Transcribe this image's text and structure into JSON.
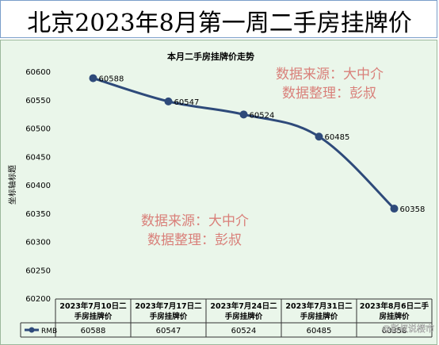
{
  "page": {
    "title": "北京2023年8月第一周二手房挂牌价"
  },
  "watermarks": [
    {
      "line1": "数据来源：大中介",
      "line2": "数据整理：彭叔"
    },
    {
      "line1": "数据来源：大中介",
      "line2": "数据整理：彭叔"
    }
  ],
  "footer_credit": "@彭叔说楼市",
  "colors": {
    "line": "#2e4a7a",
    "marker": "#2e4a7a",
    "background": "#eaf6ea",
    "watermark": "#d9807a"
  },
  "chart_data": {
    "type": "line",
    "title": "本月二手房挂牌价走势",
    "ylabel": "坐标轴标题",
    "xlabel": "",
    "ylim": [
      60200,
      60600
    ],
    "yticks": [
      60200,
      60250,
      60300,
      60350,
      60400,
      60450,
      60500,
      60550,
      60600
    ],
    "categories": [
      "2023年7月10日二手房挂牌价",
      "2023年7月17日二手房挂牌价",
      "2023年7月24日二手房挂牌价",
      "2023年7月31日二手房挂牌价",
      "2023年8月6日二手房挂牌价"
    ],
    "series": [
      {
        "name": "RMB",
        "values": [
          60588,
          60547,
          60524,
          60485,
          60358
        ]
      }
    ],
    "data_labels": [
      "60588",
      "60547",
      "60524",
      "60485",
      "60358"
    ],
    "legend": "table-bottom",
    "grid": false
  }
}
